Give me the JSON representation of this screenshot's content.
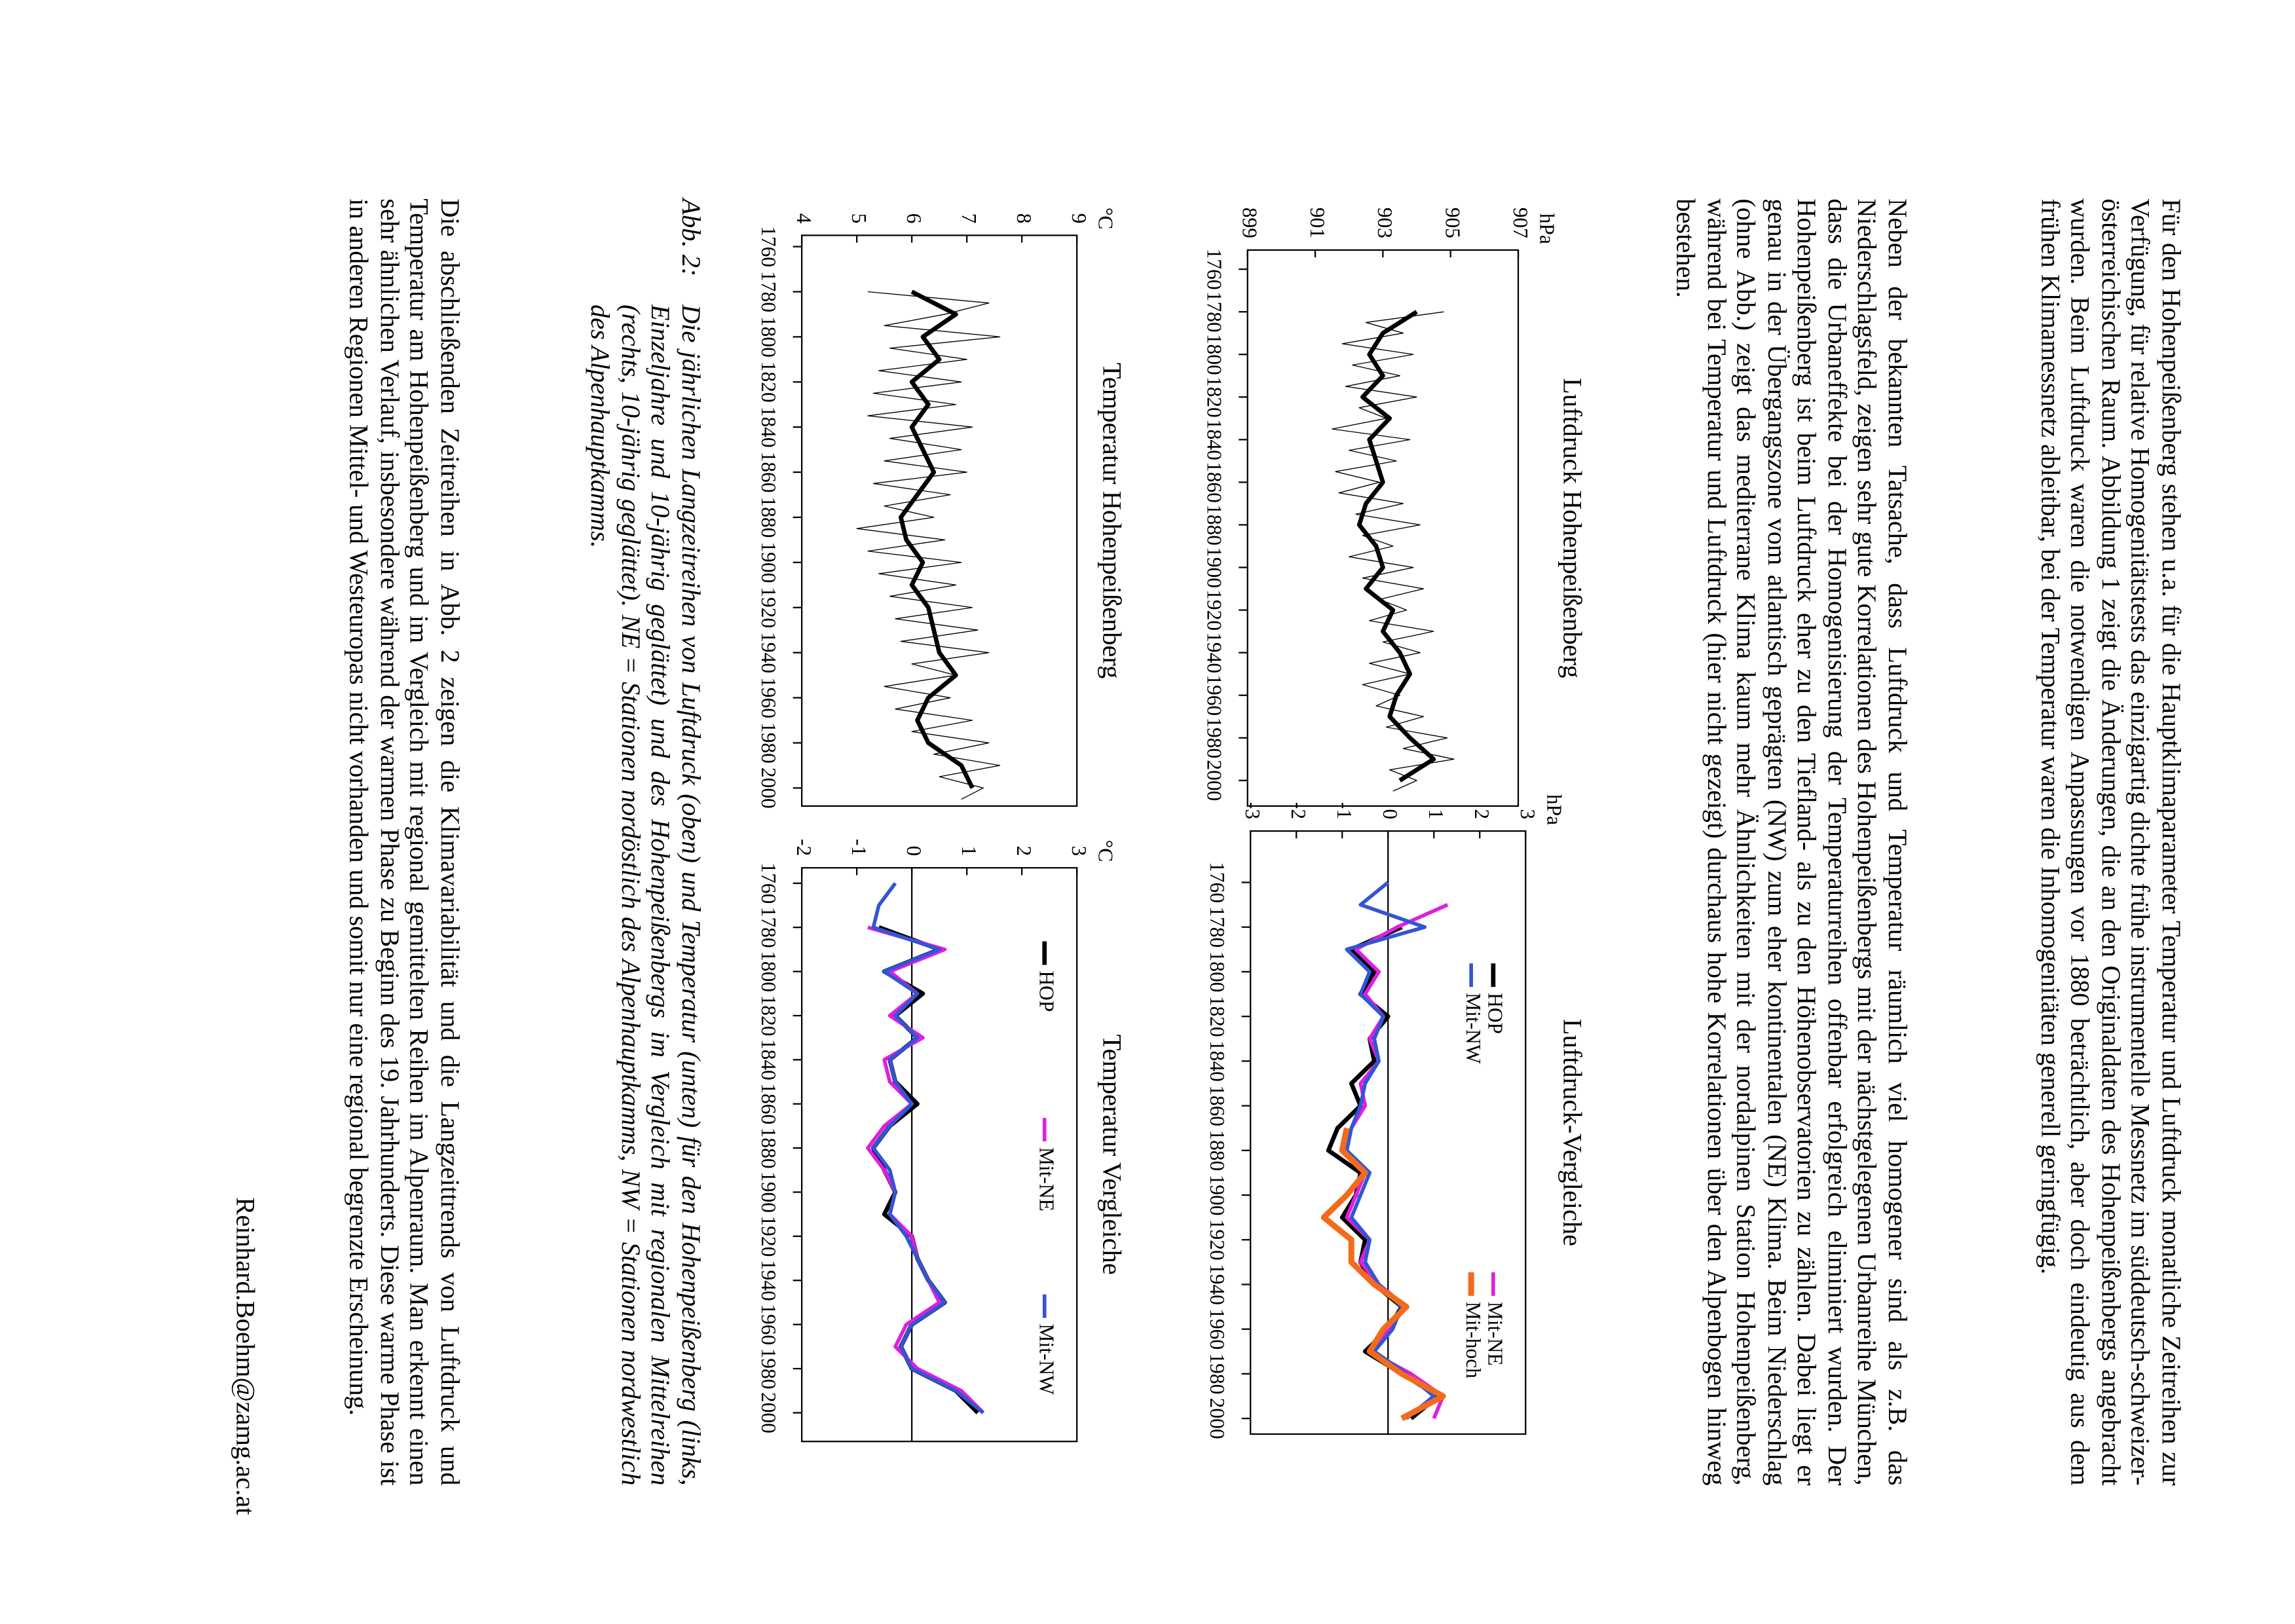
{
  "text": {
    "paragraphs": [
      "Für den Hohenpeißenberg stehen u.a. für die Hauptklimaparameter Temperatur und Luftdruck monatliche Zeitreihen zur Verfügung, für relative Homogenitätstests das einzigartig dichte frühe instrumentelle Messnetz im süddeutsch-schweizer-österreichischen Raum. Abbildung 1 zeigt die Änderungen, die an den Originaldaten des Hohenpeißenbergs angebracht wurden. Beim Luftdruck waren die notwendigen Anpassungen vor 1880 beträchtlich, aber doch eindeutig aus dem frühen Klimamessnetz ableitbar, bei der Temperatur waren die Inhomogenitäten generell geringfügig.",
      "Neben der bekannten Tatsache, dass Luftdruck und Temperatur räumlich viel homogener sind als z.B. das Niederschlagsfeld, zeigen sehr gute Korrelationen des Hohenpeißenbergs mit der nächstgelegenen Urbanreihe München, dass die Urbaneffekte bei der Homogenisierung der Temperaturreihen offenbar erfolgreich eliminiert wurden. Der Hohenpeißenberg ist beim Luftdruck eher zu den Tiefland- als zu den Höhenobservatorien zu zählen. Dabei liegt er genau in der Übergangszone vom atlantisch geprägten (NW) zum eher kontinentalen (NE) Klima. Beim Niederschlag (ohne Abb.) zeigt das mediterrane Klima kaum mehr Ähnlichkeiten mit der nordalpinen Station Hohenpeißenberg, während bei Temperatur und Luftdruck (hier nicht gezeigt) durchaus hohe Korrelationen über den Alpenbogen hinweg bestehen."
    ],
    "caption": {
      "label": "Abb. 2:",
      "text": "Die jährlichen Langzeitreihen von Luftdruck (oben) und Temperatur (unten) für den Hohenpeißenberg (links, Einzeljahre und 10-jährig geglättet) und des Hohenpeißenbergs im Vergleich mit regionalen Mittelreihen (rechts, 10-jährig geglättet). NE = Stationen nordöstlich des Alpenhauptkamms, NW = Stationen nordwestlich des Alpenhauptkamms."
    },
    "closing": "Die abschließenden Zeitreihen in Abb. 2 zeigen die Klimavariabilität und die Langzeittrends von Luftdruck und Temperatur am Hohenpeißenberg und im Vergleich mit regional gemittelten Reihen im Alpenraum. Man erkennt einen sehr ähnlichen Verlauf, insbesondere während der warmen Phase zu Beginn des 19. Jahrhunderts. Diese warme Phase ist in anderen Regionen Mittel- und Westeuropas nicht vorhanden und somit nur eine regional begrenzte Erscheinung.",
    "author": "Reinhard.Boehm@zamg.ac.at"
  },
  "chart_data": [
    {
      "type": "line",
      "title": "Luftdruck Hohenpeißenberg",
      "y_unit": "hPa",
      "xlim": [
        1751,
        2012
      ],
      "xticks": [
        1760,
        1780,
        1800,
        1820,
        1840,
        1860,
        1880,
        1900,
        1920,
        1940,
        1960,
        1980,
        2000
      ],
      "ylim": [
        899,
        907
      ],
      "yticks": [
        899,
        901,
        903,
        905,
        907
      ],
      "series": [
        {
          "color": "#000000",
          "linewidth": 0.6,
          "x": [
            1780,
            1785,
            1790,
            1795,
            1800,
            1805,
            1810,
            1815,
            1820,
            1825,
            1830,
            1835,
            1840,
            1845,
            1850,
            1855,
            1860,
            1865,
            1870,
            1875,
            1880,
            1885,
            1890,
            1895,
            1900,
            1905,
            1910,
            1915,
            1920,
            1925,
            1930,
            1935,
            1940,
            1945,
            1950,
            1955,
            1960,
            1965,
            1970,
            1975,
            1980,
            1985,
            1990,
            1995,
            2000,
            2005
          ],
          "values": [
            904.8,
            902.5,
            903.6,
            901.8,
            903.9,
            902.1,
            903.5,
            901.9,
            904.0,
            902.3,
            903.1,
            901.5,
            903.8,
            902.0,
            903.4,
            901.6,
            902.9,
            901.7,
            903.6,
            902.2,
            904.1,
            902.4,
            903.3,
            902.0,
            903.9,
            902.4,
            904.2,
            902.9,
            903.7,
            902.6,
            904.5,
            903.0,
            904.1,
            902.6,
            903.8,
            902.4,
            903.5,
            902.8,
            904.2,
            903.1,
            904.9,
            903.6,
            905.1,
            903.2,
            904.0,
            903.3
          ]
        },
        {
          "color": "#000000",
          "linewidth": 3,
          "x": [
            1780,
            1790,
            1800,
            1810,
            1820,
            1830,
            1840,
            1850,
            1860,
            1870,
            1880,
            1890,
            1900,
            1910,
            1920,
            1930,
            1940,
            1950,
            1960,
            1970,
            1980,
            1990,
            2000
          ],
          "values": [
            904.0,
            903.0,
            902.6,
            903.0,
            902.4,
            903.2,
            902.6,
            902.8,
            903.0,
            902.5,
            902.3,
            902.8,
            903.0,
            902.5,
            903.3,
            903.0,
            903.5,
            903.8,
            903.4,
            903.2,
            903.8,
            904.5,
            903.5
          ]
        }
      ]
    },
    {
      "type": "line",
      "title": "Luftdruck-Vergleiche",
      "y_unit": "hPa",
      "zero_line": true,
      "xlim": [
        1737,
        2007
      ],
      "xticks": [
        1760,
        1780,
        1800,
        1820,
        1840,
        1860,
        1880,
        1900,
        1920,
        1940,
        1960,
        1980,
        2000
      ],
      "ylim": [
        -3,
        3
      ],
      "yticks": [
        -3,
        -2,
        -1,
        0,
        1,
        2,
        3
      ],
      "x": [
        1760,
        1770,
        1780,
        1790,
        1800,
        1810,
        1820,
        1830,
        1840,
        1850,
        1860,
        1870,
        1880,
        1890,
        1900,
        1910,
        1920,
        1930,
        1940,
        1950,
        1960,
        1970,
        1980,
        1990,
        2000
      ],
      "series": [
        {
          "name": "HOP",
          "color": "#000000",
          "linewidth": 3,
          "values": [
            null,
            null,
            0.3,
            -0.8,
            -0.3,
            -0.6,
            0.0,
            -0.4,
            -0.3,
            -0.8,
            -0.6,
            -1.1,
            -1.3,
            -0.6,
            -0.7,
            -1.0,
            -0.5,
            -0.6,
            -0.3,
            0.3,
            0.0,
            -0.5,
            0.3,
            1.1,
            0.5
          ]
        },
        {
          "name": "Mit-NE",
          "color": "#e01ee0",
          "linewidth": 2.5,
          "values": [
            null,
            1.3,
            0.2,
            -0.7,
            -0.2,
            -0.5,
            -0.1,
            -0.4,
            -0.2,
            -0.6,
            -0.5,
            -0.8,
            -0.9,
            -0.5,
            -0.7,
            -0.9,
            -0.4,
            -0.6,
            -0.2,
            0.4,
            0.0,
            -0.4,
            0.5,
            1.2,
            1.0
          ]
        },
        {
          "name": "Mit-NW",
          "color": "#3355d4",
          "linewidth": 2.5,
          "values": [
            0.0,
            -0.6,
            0.8,
            -0.9,
            -0.4,
            -0.6,
            -0.1,
            -0.3,
            -0.2,
            -0.5,
            -0.6,
            -0.8,
            -0.9,
            -0.4,
            -0.6,
            -0.8,
            -0.4,
            -0.5,
            -0.2,
            0.3,
            0.1,
            -0.3,
            0.4,
            1.0,
            0.4
          ]
        },
        {
          "name": "Mit-hoch",
          "color": "#f26b1d",
          "linewidth": 4,
          "values": [
            null,
            null,
            null,
            null,
            null,
            null,
            null,
            null,
            null,
            null,
            null,
            -0.9,
            -1.0,
            -0.5,
            -0.9,
            -1.4,
            -0.8,
            -0.8,
            -0.3,
            0.4,
            -0.1,
            -0.4,
            0.3,
            1.2,
            0.3
          ]
        }
      ]
    },
    {
      "type": "line",
      "title": "Temperatur Hohenpeißenberg",
      "y_unit": "°C",
      "xlim": [
        1755,
        2008
      ],
      "xticks": [
        1760,
        1780,
        1800,
        1820,
        1840,
        1860,
        1880,
        1900,
        1920,
        1940,
        1960,
        1980,
        2000
      ],
      "ylim": [
        4,
        9
      ],
      "yticks": [
        4,
        5,
        6,
        7,
        8,
        9
      ],
      "series": [
        {
          "color": "#000000",
          "linewidth": 0.6,
          "x": [
            1780,
            1785,
            1790,
            1795,
            1800,
            1805,
            1810,
            1815,
            1820,
            1825,
            1830,
            1835,
            1840,
            1845,
            1850,
            1855,
            1860,
            1865,
            1870,
            1875,
            1880,
            1885,
            1890,
            1895,
            1900,
            1905,
            1910,
            1915,
            1920,
            1925,
            1930,
            1935,
            1940,
            1945,
            1950,
            1955,
            1960,
            1965,
            1970,
            1975,
            1980,
            1985,
            1990,
            1995,
            2000,
            2005
          ],
          "values": [
            5.2,
            7.4,
            6.6,
            5.5,
            7.6,
            5.6,
            7.0,
            5.4,
            6.9,
            5.3,
            6.8,
            5.2,
            7.1,
            5.6,
            6.9,
            5.5,
            7.0,
            5.3,
            6.7,
            5.5,
            6.4,
            5.0,
            6.6,
            5.2,
            6.9,
            5.4,
            6.8,
            5.6,
            7.1,
            5.7,
            7.2,
            5.8,
            7.4,
            6.0,
            6.8,
            5.5,
            6.7,
            5.7,
            7.1,
            6.0,
            7.4,
            6.4,
            7.6,
            6.5,
            7.3,
            6.9
          ]
        },
        {
          "color": "#000000",
          "linewidth": 3,
          "x": [
            1780,
            1790,
            1800,
            1810,
            1820,
            1830,
            1840,
            1850,
            1860,
            1870,
            1880,
            1890,
            1900,
            1910,
            1920,
            1930,
            1940,
            1950,
            1960,
            1970,
            1980,
            1990,
            2000
          ],
          "values": [
            6.0,
            6.8,
            6.2,
            6.5,
            6.0,
            6.3,
            6.0,
            6.2,
            6.4,
            6.1,
            5.8,
            5.9,
            6.2,
            6.0,
            6.3,
            6.4,
            6.5,
            6.8,
            6.3,
            6.1,
            6.3,
            6.9,
            7.1
          ]
        }
      ]
    },
    {
      "type": "line",
      "title": "Temperatur Vergleiche",
      "y_unit": "°C",
      "zero_line": true,
      "xlim": [
        1753,
        2013
      ],
      "xticks": [
        1760,
        1780,
        1800,
        1820,
        1840,
        1860,
        1880,
        1900,
        1920,
        1940,
        1960,
        1980,
        2000
      ],
      "ylim": [
        -2,
        3
      ],
      "yticks": [
        -2,
        -1,
        0,
        1,
        2,
        3
      ],
      "x": [
        1760,
        1770,
        1780,
        1790,
        1800,
        1810,
        1820,
        1830,
        1840,
        1850,
        1860,
        1870,
        1880,
        1890,
        1900,
        1910,
        1920,
        1930,
        1940,
        1950,
        1960,
        1970,
        1980,
        1990,
        2000
      ],
      "series": [
        {
          "name": "HOP",
          "color": "#000000",
          "linewidth": 3,
          "values": [
            null,
            null,
            -0.6,
            0.5,
            -0.5,
            0.2,
            -0.3,
            0.1,
            -0.4,
            -0.3,
            0.1,
            -0.4,
            -0.7,
            -0.5,
            -0.3,
            -0.5,
            0.0,
            0.1,
            0.3,
            0.6,
            0.0,
            -0.2,
            0.0,
            0.8,
            1.2
          ]
        },
        {
          "name": "Mit-NE",
          "color": "#e01ee0",
          "linewidth": 2.5,
          "values": [
            null,
            null,
            -0.8,
            0.6,
            -0.4,
            0.1,
            -0.4,
            0.2,
            -0.5,
            -0.4,
            0.0,
            -0.5,
            -0.8,
            -0.5,
            -0.3,
            -0.4,
            0.0,
            0.1,
            0.3,
            0.5,
            -0.1,
            -0.3,
            0.1,
            0.9,
            1.3
          ]
        },
        {
          "name": "Mit-NW",
          "color": "#3355d4",
          "linewidth": 2.5,
          "values": [
            -0.3,
            -0.6,
            -0.7,
            0.5,
            -0.5,
            0.1,
            -0.3,
            0.1,
            -0.4,
            -0.3,
            0.0,
            -0.4,
            -0.7,
            -0.4,
            -0.3,
            -0.4,
            -0.1,
            0.1,
            0.3,
            0.6,
            0.0,
            -0.2,
            0.0,
            0.8,
            1.3
          ]
        }
      ]
    }
  ]
}
